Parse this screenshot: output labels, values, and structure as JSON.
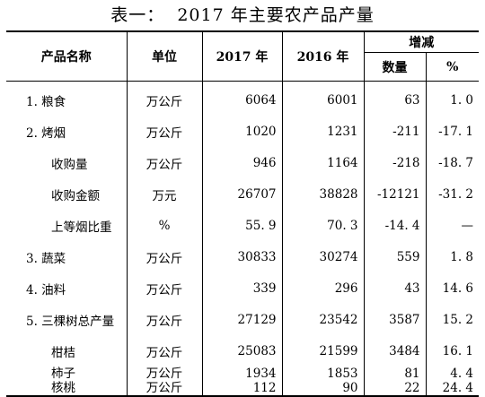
{
  "title": "表一：  2017 年主要农产品产量",
  "header": {
    "product": "产品名称",
    "unit": "单位",
    "y2017": "2017 年",
    "y2016": "2016 年",
    "change": "增减",
    "qty": "数量",
    "pct": "%"
  },
  "rows": [
    {
      "name": "1. 粮食",
      "unit": "万公斤",
      "y2017": "6064",
      "y2016": "6001",
      "qty": "63",
      "pct": "1. 0"
    },
    {
      "name": "2. 烤烟",
      "unit": "万公斤",
      "y2017": "1020",
      "y2016": "1231",
      "qty": "-211",
      "pct": "-17. 1"
    },
    {
      "name": "收购量",
      "unit": "万公斤",
      "y2017": "946",
      "y2016": "1164",
      "qty": "-218",
      "pct": "-18. 7"
    },
    {
      "name": "收购金额",
      "unit": "万元",
      "y2017": "26707",
      "y2016": "38828",
      "qty": "-12121",
      "pct": "-31. 2"
    },
    {
      "name": "上等烟比重",
      "unit": "%",
      "y2017": "55. 9",
      "y2016": "70. 3",
      "qty": "-14. 4",
      "pct": "—"
    },
    {
      "name": "3. 蔬菜",
      "unit": "万公斤",
      "y2017": "30833",
      "y2016": "30274",
      "qty": "559",
      "pct": "1. 8"
    },
    {
      "name": "4. 油料",
      "unit": "万公斤",
      "y2017": "339",
      "y2016": "296",
      "qty": "43",
      "pct": "14. 6"
    },
    {
      "name": "5. 三棵树总产量",
      "unit": "万公斤",
      "y2017": "27129",
      "y2016": "23542",
      "qty": "3587",
      "pct": "15. 2"
    },
    {
      "name": "柑桔",
      "unit": "万公斤",
      "y2017": "25083",
      "y2016": "21599",
      "qty": "3484",
      "pct": "16. 1"
    },
    {
      "name": "柿子",
      "unit": "万公斤",
      "y2017": "1934",
      "y2016": "1853",
      "qty": "81",
      "pct": "4. 4"
    },
    {
      "name": "核桃",
      "unit": "万公斤",
      "y2017": "112",
      "y2016": "90",
      "qty": "22",
      "pct": "24. 4"
    }
  ]
}
